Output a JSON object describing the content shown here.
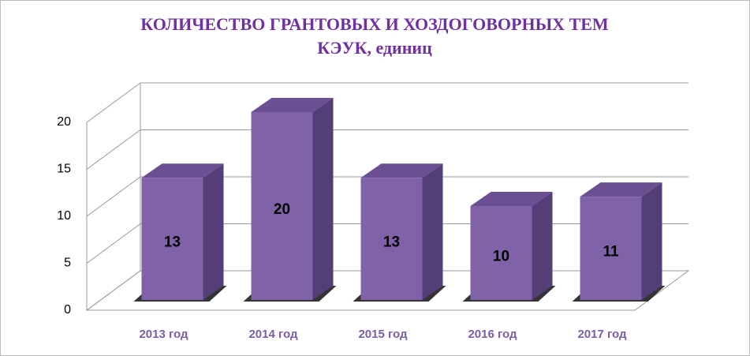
{
  "chart_data": {
    "type": "bar3d",
    "title": [
      "КОЛИЧЕСТВО ГРАНТОВЫХ И ХОЗДОГОВОРНЫХ  ТЕМ",
      "КЭУК, единиц"
    ],
    "categories": [
      "2013 год",
      "2014 год",
      "2015 год",
      "2016 год",
      "2017 год"
    ],
    "values": [
      13,
      20,
      13,
      10,
      11
    ],
    "color": "#7f62a8",
    "ylim": [
      0,
      20
    ],
    "yticks": [
      0,
      5,
      10,
      15,
      20
    ],
    "grid": true
  }
}
